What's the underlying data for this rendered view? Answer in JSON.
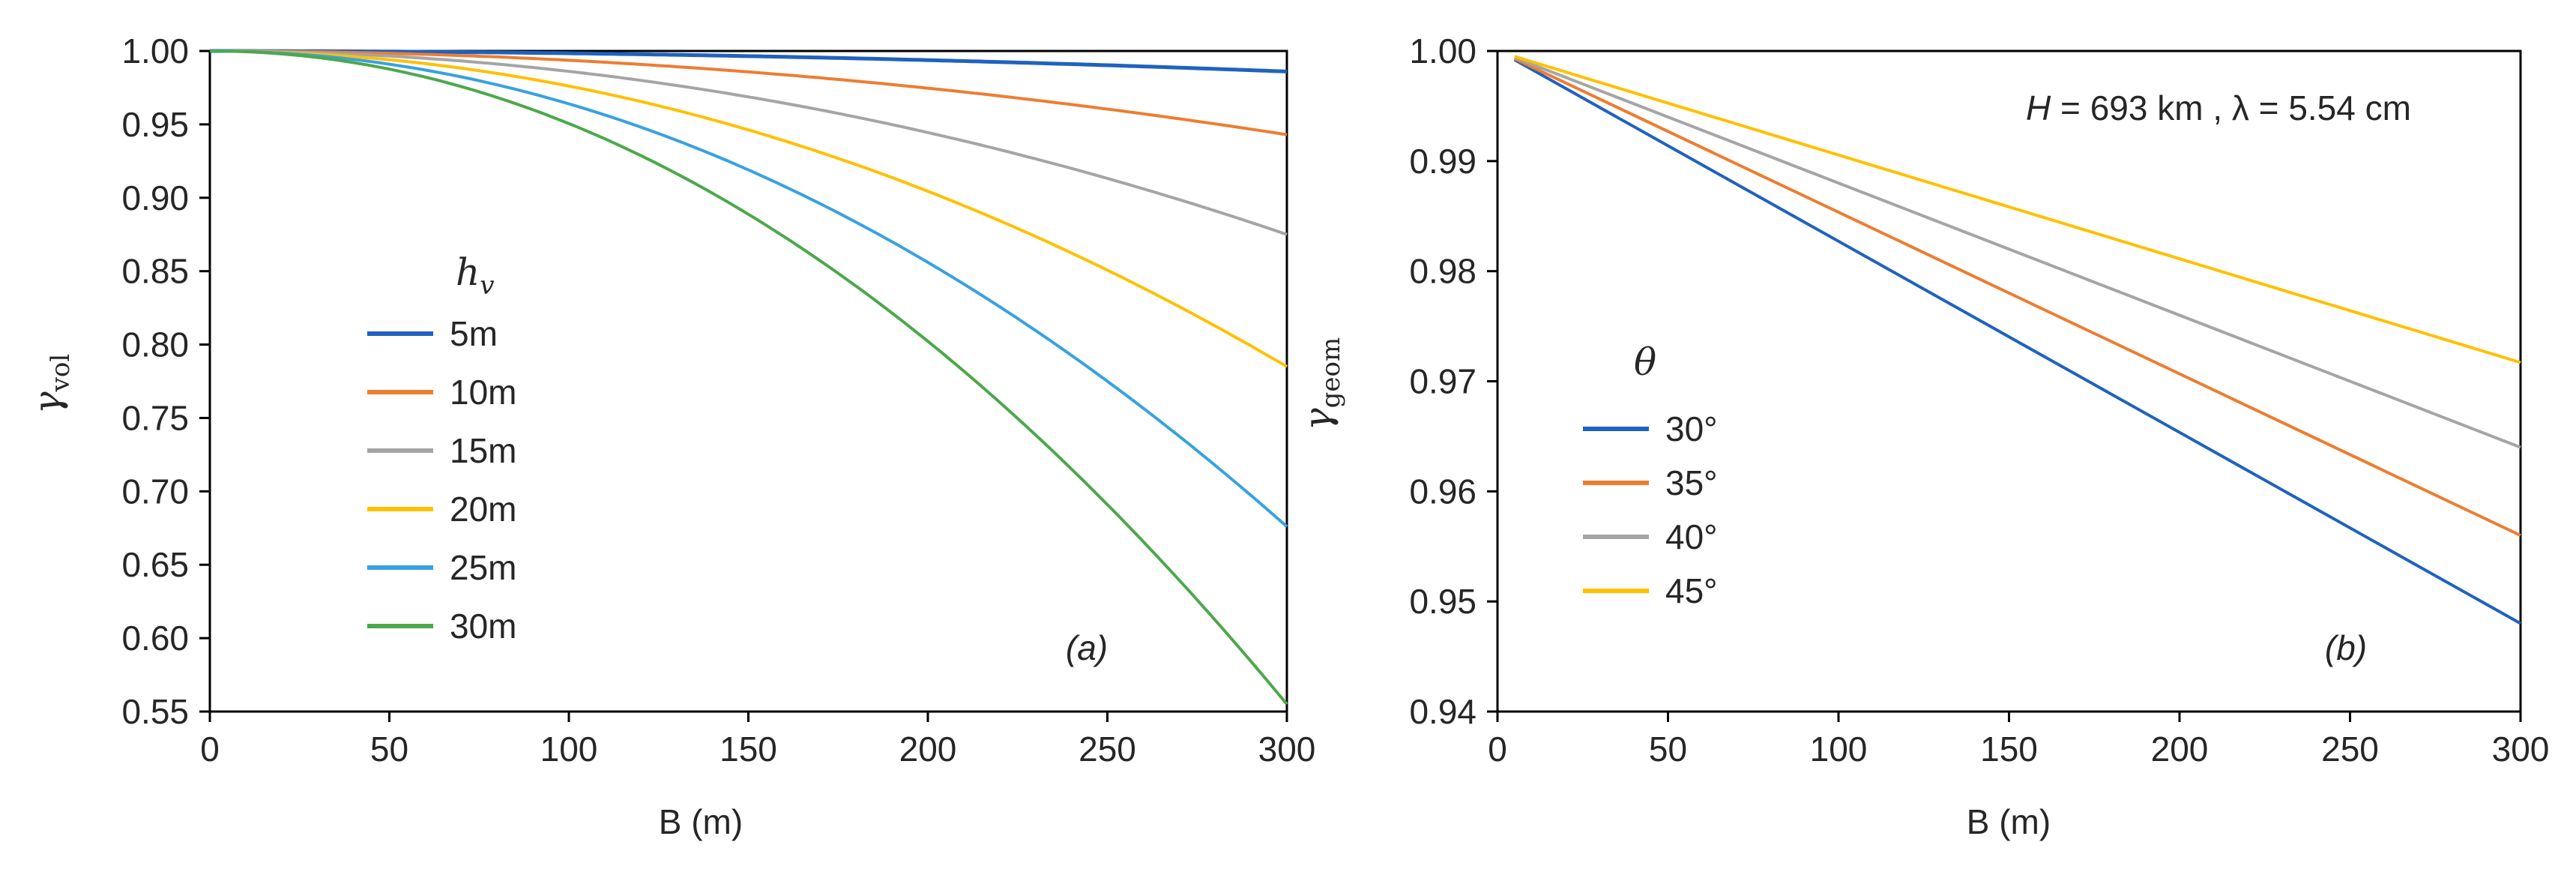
{
  "chart_data": [
    {
      "type": "line",
      "panel_label": "(a)",
      "ylabel_symbol": "γ",
      "ylabel_sub": "vol",
      "xlabel": "B (m)",
      "xlim": [
        0,
        300
      ],
      "ylim": [
        0.55,
        1.0
      ],
      "xticks": [
        "0",
        "50",
        "100",
        "150",
        "200",
        "250",
        "300"
      ],
      "yticks": [
        "0.55",
        "0.60",
        "0.65",
        "0.70",
        "0.75",
        "0.80",
        "0.85",
        "0.90",
        "0.95",
        "1.00"
      ],
      "xtick_values": [
        0,
        50,
        100,
        150,
        200,
        250,
        300
      ],
      "ytick_values": [
        0.55,
        0.6,
        0.65,
        0.7,
        0.75,
        0.8,
        0.85,
        0.9,
        0.95,
        1.0
      ],
      "legend_title_symbol": "h",
      "legend_title_sub": "v",
      "x": [
        0,
        50,
        100,
        150,
        200,
        250,
        300
      ],
      "series": [
        {
          "name": "5m",
          "color": "#1f62c0",
          "width": 5,
          "values": [
            1.0,
            0.9996,
            0.9984,
            0.9964,
            0.9936,
            0.99,
            0.986
          ]
        },
        {
          "name": "10m",
          "color": "#ed7d31",
          "width": 4,
          "values": [
            1.0,
            0.9984,
            0.9935,
            0.9855,
            0.9745,
            0.9605,
            0.943
          ]
        },
        {
          "name": "15m",
          "color": "#a5a5a5",
          "width": 4,
          "values": [
            1.0,
            0.9965,
            0.986,
            0.9685,
            0.944,
            0.913,
            0.875
          ]
        },
        {
          "name": "20m",
          "color": "#ffc000",
          "width": 4,
          "values": [
            1.0,
            0.994,
            0.975,
            0.943,
            0.899,
            0.845,
            0.785
          ]
        },
        {
          "name": "25m",
          "color": "#38a2e0",
          "width": 4,
          "values": [
            1.0,
            0.99,
            0.96,
            0.911,
            0.845,
            0.765,
            0.676
          ]
        },
        {
          "name": "30m",
          "color": "#4ca84a",
          "width": 4,
          "values": [
            1.0,
            0.986,
            0.942,
            0.872,
            0.78,
            0.673,
            0.555
          ]
        }
      ]
    },
    {
      "type": "line",
      "panel_label": "(b)",
      "ylabel_symbol": "γ",
      "ylabel_sub": "geom",
      "xlabel": "B (m)",
      "xlim": [
        0,
        300
      ],
      "ylim": [
        0.94,
        1.0
      ],
      "xticks": [
        "0",
        "50",
        "100",
        "150",
        "200",
        "250",
        "300"
      ],
      "yticks": [
        "0.94",
        "0.95",
        "0.96",
        "0.97",
        "0.98",
        "0.99",
        "1.00"
      ],
      "xtick_values": [
        0,
        50,
        100,
        150,
        200,
        250,
        300
      ],
      "ytick_values": [
        0.94,
        0.95,
        0.96,
        0.97,
        0.98,
        0.99,
        1.0
      ],
      "annotation": "H = 693 km , λ = 5.54 cm",
      "annotation_italic_part": "H",
      "annotation_rest": " = 693 km , λ = 5.54 cm",
      "legend_title_symbol": "θ",
      "x": [
        5,
        300
      ],
      "series": [
        {
          "name": "30°",
          "color": "#1f62c0",
          "width": 4,
          "values": [
            0.9992,
            0.948
          ]
        },
        {
          "name": "35°",
          "color": "#ed7d31",
          "width": 4,
          "values": [
            0.9993,
            0.956
          ]
        },
        {
          "name": "40°",
          "color": "#a5a5a5",
          "width": 4,
          "values": [
            0.9994,
            0.964
          ]
        },
        {
          "name": "45°",
          "color": "#ffc000",
          "width": 4,
          "values": [
            0.9995,
            0.9717
          ]
        }
      ]
    }
  ]
}
